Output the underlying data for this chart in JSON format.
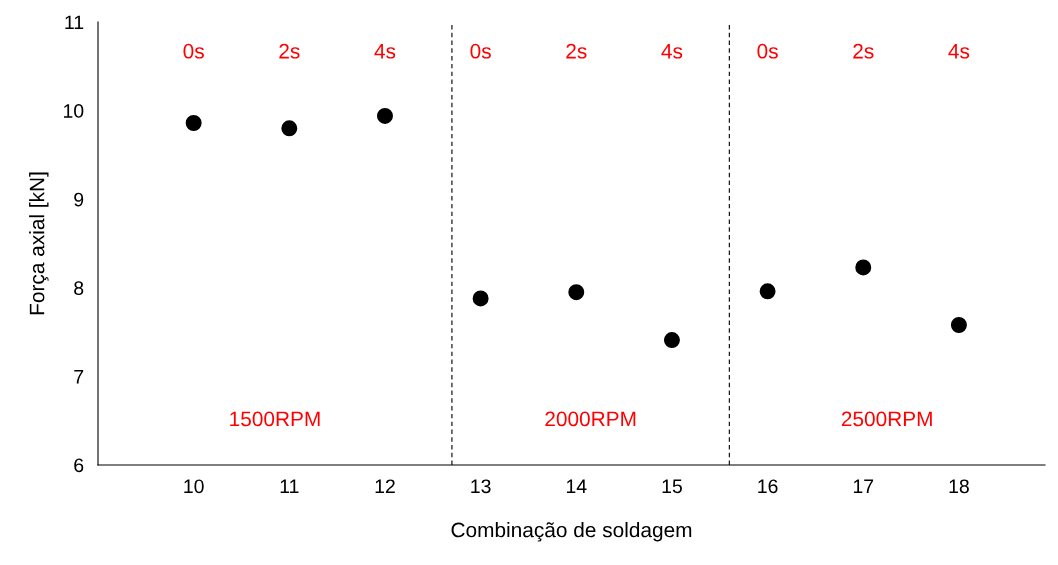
{
  "chart_data": {
    "type": "scatter",
    "xlabel": "Combinação de soldagem",
    "ylabel": "Força axial [kN]",
    "x": [
      10,
      11,
      12,
      13,
      14,
      15,
      16,
      17,
      18
    ],
    "values": [
      9.86,
      9.8,
      9.94,
      7.88,
      7.95,
      7.41,
      7.96,
      8.23,
      7.58
    ],
    "color": "#000000",
    "marker": "circle",
    "grid": false,
    "legend": false,
    "xlim": [
      9,
      18.9
    ],
    "xticks": [
      10,
      11,
      12,
      13,
      14,
      15,
      16,
      17,
      18
    ],
    "ylim": [
      6,
      11
    ],
    "yticks": [
      6,
      7,
      8,
      9,
      10,
      11
    ],
    "ref_lines": [
      {
        "axis": "x",
        "value": 12.7,
        "color": "#000000",
        "line_style": "dashed"
      },
      {
        "axis": "x",
        "value": 15.6,
        "color": "#000000",
        "line_style": "dashed"
      }
    ],
    "annotations": [
      "0s",
      "2s",
      "4s",
      "0s",
      "2s",
      "4s",
      "0s",
      "2s",
      "4s",
      "1500RPM",
      "2000RPM",
      "2500RPM"
    ]
  }
}
